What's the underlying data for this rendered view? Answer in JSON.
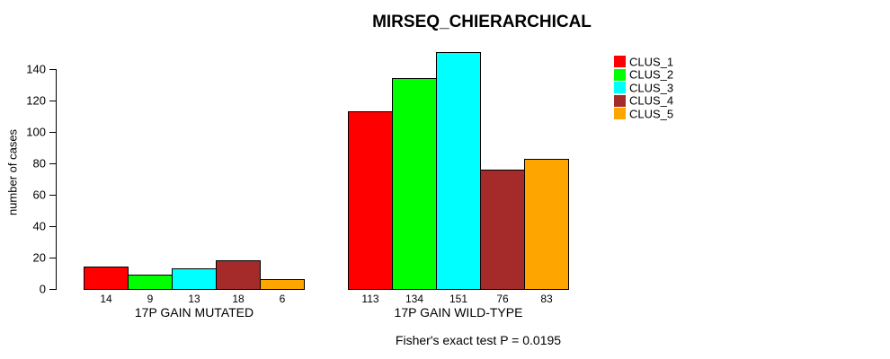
{
  "chart_data": {
    "type": "bar",
    "title": "MIRSEQ_CHIERARCHICAL",
    "xlabel": "",
    "ylabel": "number of cases",
    "ylim": [
      0,
      155
    ],
    "yticks": [
      0,
      20,
      40,
      60,
      80,
      100,
      120,
      140
    ],
    "categories": [
      "17P GAIN MUTATED",
      "17P GAIN WILD-TYPE"
    ],
    "series": [
      {
        "name": "CLUS_1",
        "color": "#FF0000",
        "values": [
          14,
          113
        ]
      },
      {
        "name": "CLUS_2",
        "color": "#00FF00",
        "values": [
          9,
          134
        ]
      },
      {
        "name": "CLUS_3",
        "color": "#00FFFF",
        "values": [
          13,
          151
        ]
      },
      {
        "name": "CLUS_4",
        "color": "#A52A2A",
        "values": [
          18,
          76
        ]
      },
      {
        "name": "CLUS_5",
        "color": "#FFA500",
        "values": [
          6,
          83
        ]
      }
    ],
    "bar_value_labels": [
      [
        "14",
        "9",
        "13",
        "18",
        "6"
      ],
      [
        "113",
        "134",
        "151",
        "76",
        "83"
      ]
    ],
    "annotation": "Fisher's exact test P = 0.0195",
    "legend_position": "right",
    "legend_entries": [
      "CLUS_1",
      "CLUS_2",
      "CLUS_3",
      "CLUS_4",
      "CLUS_5"
    ],
    "grid": false,
    "background": "#FFFFFF",
    "bar_border_color": "#000000",
    "text_color": "#000000"
  }
}
